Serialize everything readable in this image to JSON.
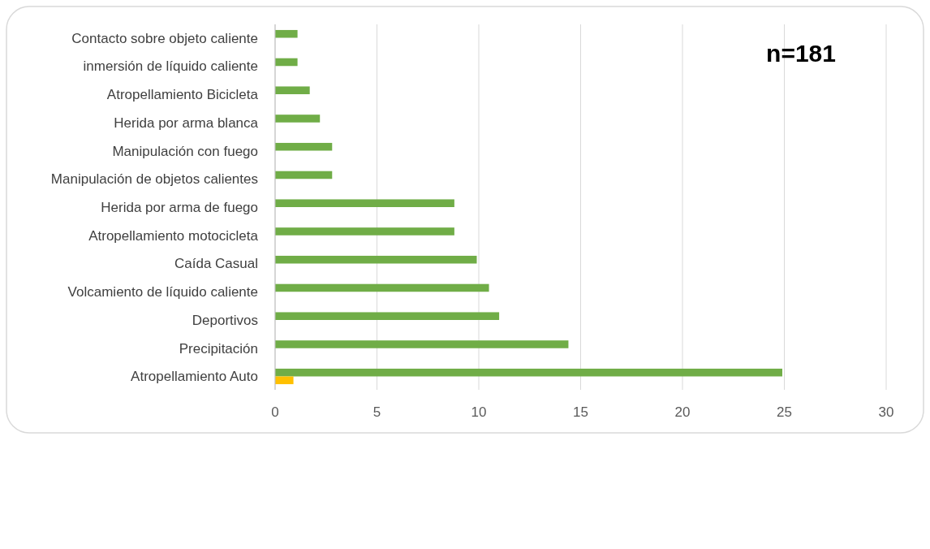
{
  "chart_data": {
    "type": "bar",
    "orientation": "horizontal",
    "categories": [
      "Contacto sobre objeto caliente",
      "inmersión de líquido caliente",
      "Atropellamiento Bicicleta",
      "Herida por arma blanca",
      "Manipulación con fuego",
      "Manipulación de objetos calientes",
      "Herida por arma de fuego",
      "Atropellamiento motocicleta",
      "Caída Casual",
      "Volcamiento de líquido caliente",
      "Deportivos",
      "Precipitación",
      "Atropellamiento Auto"
    ],
    "series": [
      {
        "color": "#70ad47",
        "values": [
          1.1,
          1.1,
          1.7,
          2.2,
          2.8,
          2.8,
          8.8,
          8.8,
          9.9,
          10.5,
          11,
          14.4,
          24.9
        ]
      },
      {
        "color": "#ffc000",
        "values": [
          null,
          null,
          null,
          null,
          null,
          null,
          null,
          null,
          null,
          null,
          null,
          null,
          0.9
        ]
      }
    ],
    "xlim": [
      0,
      30
    ],
    "xticks": [
      0,
      5,
      10,
      15,
      20,
      25,
      30
    ],
    "grid": "x",
    "annotations": [
      "n=181"
    ]
  }
}
